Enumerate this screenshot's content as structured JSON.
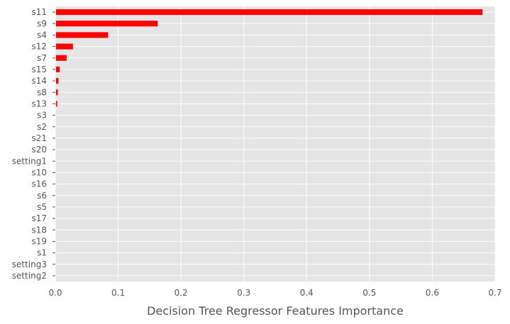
{
  "chart_data": {
    "type": "bar",
    "orientation": "horizontal",
    "categories": [
      "s11",
      "s9",
      "s4",
      "s12",
      "s7",
      "s15",
      "s14",
      "s8",
      "s13",
      "s3",
      "s2",
      "s21",
      "s20",
      "setting1",
      "s10",
      "s16",
      "s6",
      "s5",
      "s17",
      "s18",
      "s19",
      "s1",
      "setting3",
      "setting2"
    ],
    "values": [
      0.68,
      0.163,
      0.084,
      0.028,
      0.018,
      0.007,
      0.005,
      0.004,
      0.003,
      0,
      0,
      0,
      0,
      0,
      0,
      0,
      0,
      0,
      0,
      0,
      0,
      0,
      0,
      0
    ],
    "title": "",
    "xlabel": "Decision Tree Regressor Features Importance",
    "ylabel": "",
    "xlim": [
      0,
      0.7
    ],
    "xticks": [
      "0.0",
      "0.1",
      "0.2",
      "0.3",
      "0.4",
      "0.5",
      "0.6",
      "0.7"
    ],
    "grid": true,
    "bar_color": "#ff0000",
    "background_color": "#e5e5e5",
    "grid_color": "#ffffff"
  }
}
